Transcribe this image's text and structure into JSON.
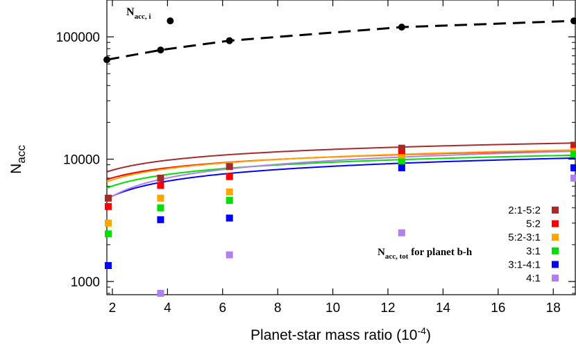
{
  "chart_data": {
    "type": "scatter",
    "xlabel": "Planet-star mass ratio (10",
    "xlabel_exp": "-4",
    "xlabel_close": ")",
    "ylabel": "N",
    "ylabel_sub": "acc",
    "y_scale": "log",
    "xlim": [
      1.8,
      18.8
    ],
    "ylim": [
      780,
      200000
    ],
    "x_ticks": [
      2,
      4,
      6,
      8,
      10,
      12,
      14,
      16,
      18
    ],
    "y_ticks": [
      1000,
      10000,
      100000
    ],
    "y_tick_labels": [
      "1000",
      "10000",
      "100000"
    ],
    "grid": false,
    "legend_position": "right",
    "annotations": [
      {
        "main": "N",
        "sub": "acc, i",
        "suffix": ""
      },
      {
        "main": "N",
        "sub": "acc, tot",
        "suffix": " for planet b-h"
      }
    ],
    "individual_series": {
      "style": "black dashed line with circles",
      "x": [
        1.8,
        3.75,
        4.1,
        6.25,
        12.5,
        18.75
      ],
      "y": [
        65000,
        78000,
        135000,
        93000,
        120000,
        135000
      ]
    },
    "series": [
      {
        "name": "2:1-5:2",
        "color": "#a52a2a",
        "x": [
          1.85,
          3.75,
          6.25,
          12.5,
          12.5,
          18.75
        ],
        "y": [
          4800,
          7000,
          8700,
          12300,
          11700,
          13000
        ],
        "fit_a": 6450,
        "fit_b": 2420
      },
      {
        "name": "5:2",
        "color": "#ff0000",
        "x": [
          1.85,
          3.75,
          6.25,
          12.5,
          18.75
        ],
        "y": [
          4100,
          6100,
          7200,
          11100,
          12000
        ],
        "fit_a": 5570,
        "fit_b": 2110
      },
      {
        "name": "5:2-3:1",
        "color": "#ffa500",
        "x": [
          1.85,
          3.75,
          6.25,
          12.5,
          18.75
        ],
        "y": [
          3000,
          4800,
          5400,
          10300,
          11600
        ],
        "fit_a": 5180,
        "fit_b": 2290
      },
      {
        "name": "3:1",
        "color": "#00e000",
        "x": [
          1.85,
          3.75,
          6.25,
          12.5,
          18.75
        ],
        "y": [
          2450,
          4000,
          4600,
          9500,
          11000
        ],
        "fit_a": 4560,
        "fit_b": 2120
      },
      {
        "name": "3:1-4:1",
        "color": "#0000ff",
        "x": [
          1.85,
          3.75,
          6.25,
          12.5,
          18.75
        ],
        "y": [
          1350,
          3200,
          3300,
          8500,
          8500
        ],
        "fit_a": 3380,
        "fit_b": 2330
      },
      {
        "name": "4:1",
        "color": "#b07ff0",
        "x": [
          3.75,
          6.25,
          12.5,
          18.75
        ],
        "y": [
          800,
          1650,
          2500,
          7000
        ],
        "fit_a": 2920,
        "fit_b": 2960
      }
    ]
  }
}
